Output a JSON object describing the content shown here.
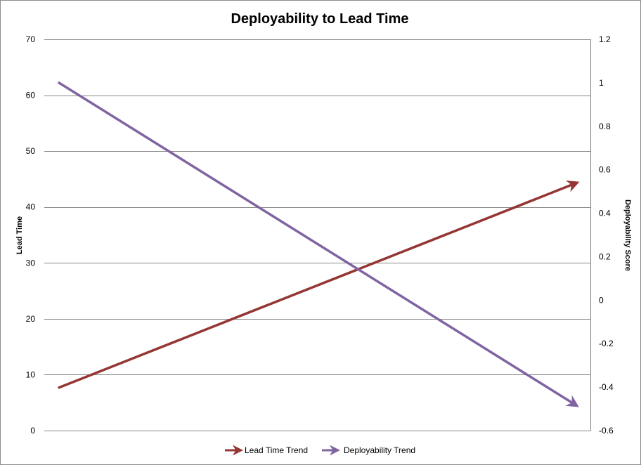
{
  "chart_data": {
    "type": "line",
    "title": "Deployability to Lead Time",
    "left_axis": {
      "label": "Lead Time",
      "ylim": [
        0,
        70
      ],
      "ticks": [
        "0",
        "10",
        "20",
        "30",
        "40",
        "50",
        "60",
        "70"
      ]
    },
    "right_axis": {
      "label": "Deployability Score",
      "ylim": [
        -0.6,
        1.2
      ],
      "ticks": [
        "-0.6",
        "-0.4",
        "-0.2",
        "0",
        "0.2",
        "0.4",
        "0.6",
        "0.8",
        "1",
        "1.2"
      ]
    },
    "x": [
      0,
      1
    ],
    "grid": true,
    "legend_position": "bottom",
    "series": [
      {
        "name": "Lead Time Trend",
        "axis": "left",
        "values": [
          7.7,
          44.2
        ],
        "color": "#943634"
      },
      {
        "name": "Deployability Trend",
        "axis": "right",
        "values": [
          1.0,
          -0.48
        ],
        "color": "#8064a2"
      }
    ]
  }
}
